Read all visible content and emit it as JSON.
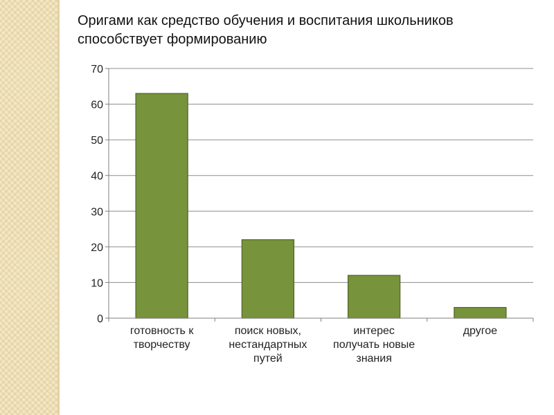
{
  "chart_data": {
    "type": "bar",
    "title": "Оригами как средство обучения и воспитания школьников способствует формированию",
    "categories": [
      [
        "готовность к",
        "творчеству"
      ],
      [
        "поиск новых,",
        "нестандартных",
        "путей"
      ],
      [
        "интерес",
        "получать новые",
        "знания"
      ],
      [
        "другое"
      ]
    ],
    "values": [
      63,
      22,
      12,
      3
    ],
    "ylim": [
      0,
      70
    ],
    "yticks": [
      0,
      10,
      20,
      30,
      40,
      50,
      60,
      70
    ],
    "grid": true,
    "legend": "none",
    "xlabel": "",
    "ylabel": ""
  },
  "colors": {
    "bar_fill": "#77933c",
    "bar_stroke": "#4f6228",
    "grid": "#8c8c8c",
    "axis": "#7f7f7f",
    "side_strip": "#f3e7c4"
  }
}
